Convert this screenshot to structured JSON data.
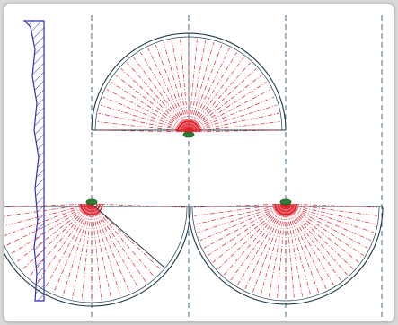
{
  "diagram": {
    "colors": {
      "background": "#ffffff",
      "frame_border": "#bdbdbd",
      "wall_hatch": "#2d2dbb",
      "guide_line": "#2f5f7a",
      "outline": "#1e3a4a",
      "ray": "#e0202a",
      "source": "#2e7d32"
    },
    "guides": {
      "count": 4
    },
    "semicircles": [
      {
        "id": "top",
        "orientation": "up",
        "ray_count": 34,
        "has_fan_gap": false
      },
      {
        "id": "bottom-left",
        "orientation": "down",
        "ray_count": 30,
        "has_fan_gap": true
      },
      {
        "id": "bottom-right",
        "orientation": "down",
        "ray_count": 34,
        "has_fan_gap": false
      }
    ]
  }
}
